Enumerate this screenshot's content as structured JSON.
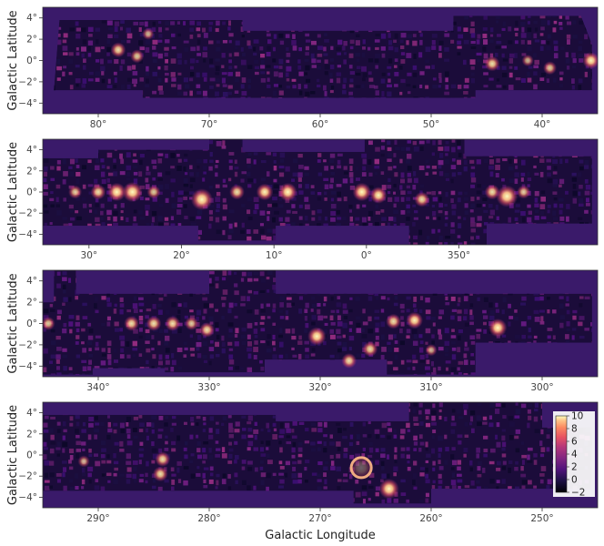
{
  "chart_data": {
    "type": "heatmap",
    "title": "",
    "ylabel": "Galactic Latitude",
    "xlabel": "Galactic Longitude",
    "colormap": "magma",
    "colorbar": {
      "range": [
        -2,
        10
      ],
      "ticks": [
        "10",
        "8",
        "6",
        "4",
        "2",
        "0",
        "−2"
      ],
      "placement": "inside-right-of-bottom-panel"
    },
    "panels": [
      {
        "lon_range": [
          85,
          35
        ],
        "lat_range": [
          -5,
          5
        ],
        "xticks": [
          "80°",
          "70°",
          "60°",
          "50°",
          "40°"
        ],
        "xtick_values": [
          80,
          70,
          60,
          50,
          40
        ],
        "yticks": [
          "4°",
          "2°",
          "0°",
          "−2°",
          "−4°"
        ],
        "ytick_values": [
          4,
          2,
          0,
          -2,
          -4
        ],
        "sources": [
          {
            "l": 78.2,
            "b": 1.0,
            "intensity": 6
          },
          {
            "l": 75.5,
            "b": 2.5,
            "intensity": 4
          },
          {
            "l": 76.5,
            "b": 0.4,
            "intensity": 5
          },
          {
            "l": 39.3,
            "b": -0.7,
            "intensity": 5
          },
          {
            "l": 41.3,
            "b": 0.0,
            "intensity": 4
          },
          {
            "l": 35.6,
            "b": 0.0,
            "intensity": 7
          },
          {
            "l": 44.5,
            "b": -0.3,
            "intensity": 6
          }
        ]
      },
      {
        "lon_range": [
          35,
          -25
        ],
        "lat_range": [
          -5,
          5
        ],
        "xticks": [
          "30°",
          "20°",
          "10°",
          "0°",
          "350°"
        ],
        "xtick_values": [
          30,
          20,
          10,
          0,
          -10
        ],
        "yticks": [
          "4°",
          "2°",
          "0°",
          "−2°",
          "−4°"
        ],
        "ytick_values": [
          4,
          2,
          0,
          -2,
          -4
        ],
        "sources": [
          {
            "l": 31.5,
            "b": 0.0,
            "intensity": 5
          },
          {
            "l": 29.0,
            "b": 0.0,
            "intensity": 6
          },
          {
            "l": 27.0,
            "b": 0.0,
            "intensity": 8
          },
          {
            "l": 25.3,
            "b": 0.0,
            "intensity": 9
          },
          {
            "l": 23.0,
            "b": 0.0,
            "intensity": 5
          },
          {
            "l": 17.8,
            "b": -0.7,
            "intensity": 10
          },
          {
            "l": 14.0,
            "b": 0.0,
            "intensity": 6
          },
          {
            "l": 11.0,
            "b": 0.0,
            "intensity": 7
          },
          {
            "l": 8.5,
            "b": 0.0,
            "intensity": 8
          },
          {
            "l": 0.5,
            "b": 0.0,
            "intensity": 8
          },
          {
            "l": -1.3,
            "b": -0.3,
            "intensity": 7
          },
          {
            "l": -6.0,
            "b": -0.7,
            "intensity": 6
          },
          {
            "l": -13.6,
            "b": 0.0,
            "intensity": 6
          },
          {
            "l": -15.2,
            "b": -0.4,
            "intensity": 10
          },
          {
            "l": -17.0,
            "b": 0.0,
            "intensity": 5
          }
        ]
      },
      {
        "lon_range": [
          345,
          295
        ],
        "lat_range": [
          -5,
          5
        ],
        "xticks": [
          "340°",
          "330°",
          "320°",
          "310°",
          "300°"
        ],
        "xtick_values": [
          340,
          330,
          320,
          310,
          300
        ],
        "yticks": [
          "4°",
          "2°",
          "0°",
          "−2°",
          "−4°"
        ],
        "ytick_values": [
          4,
          2,
          0,
          -2,
          -4
        ],
        "sources": [
          {
            "l": 344.5,
            "b": 0.0,
            "intensity": 5
          },
          {
            "l": 337.0,
            "b": 0.0,
            "intensity": 6
          },
          {
            "l": 335.0,
            "b": 0.0,
            "intensity": 6
          },
          {
            "l": 333.3,
            "b": 0.0,
            "intensity": 6
          },
          {
            "l": 331.6,
            "b": 0.0,
            "intensity": 5
          },
          {
            "l": 330.2,
            "b": -0.6,
            "intensity": 6
          },
          {
            "l": 320.3,
            "b": -1.2,
            "intensity": 8
          },
          {
            "l": 317.4,
            "b": -3.5,
            "intensity": 6
          },
          {
            "l": 315.5,
            "b": -2.4,
            "intensity": 6
          },
          {
            "l": 313.4,
            "b": 0.2,
            "intensity": 6
          },
          {
            "l": 311.5,
            "b": 0.3,
            "intensity": 7
          },
          {
            "l": 310.0,
            "b": -2.5,
            "intensity": 4
          },
          {
            "l": 304.0,
            "b": -0.4,
            "intensity": 8
          }
        ]
      },
      {
        "lon_range": [
          295,
          245
        ],
        "lat_range": [
          -5,
          5
        ],
        "xticks": [
          "290°",
          "280°",
          "270°",
          "260°",
          "250°"
        ],
        "xtick_values": [
          290,
          280,
          270,
          260,
          250
        ],
        "yticks": [
          "4°",
          "2°",
          "0°",
          "−2°",
          "−4°"
        ],
        "ytick_values": [
          4,
          2,
          0,
          -2,
          -4
        ],
        "sources": [
          {
            "l": 291.3,
            "b": -0.6,
            "intensity": 4
          },
          {
            "l": 284.2,
            "b": -0.4,
            "intensity": 6
          },
          {
            "l": 284.4,
            "b": -1.8,
            "intensity": 6
          },
          {
            "l": 266.3,
            "b": -1.2,
            "intensity": 9,
            "shell": true
          },
          {
            "l": 263.8,
            "b": -3.2,
            "intensity": 9
          }
        ]
      }
    ]
  }
}
